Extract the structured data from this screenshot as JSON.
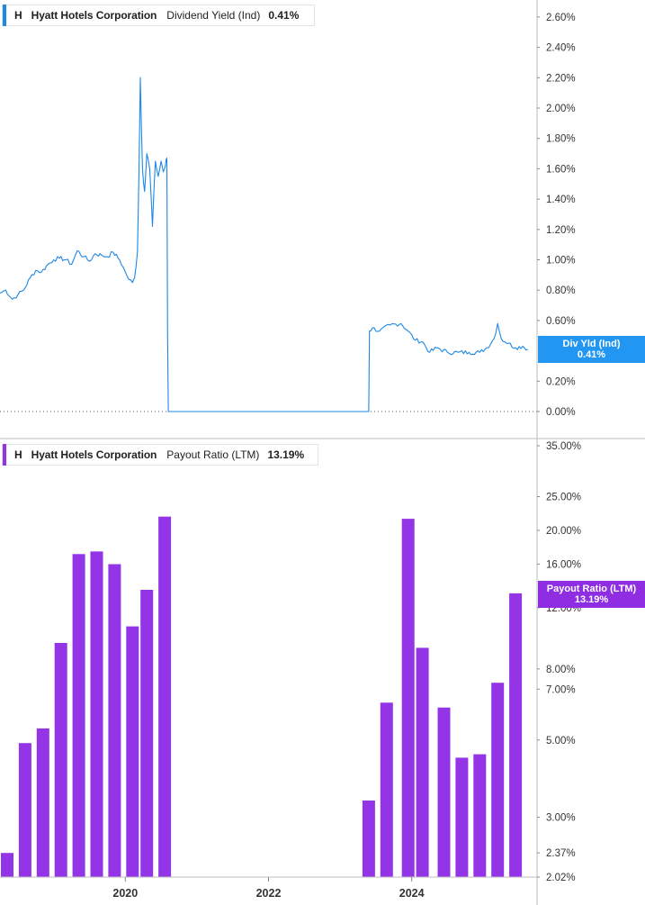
{
  "colors": {
    "dividend_line": "#1e88e5",
    "dividend_tag": "#2196f3",
    "payout_bar": "#9334e6",
    "payout_tag": "#8e2de2",
    "axis": "#bdbdbd"
  },
  "top_panel": {
    "ticker": "H",
    "company": "Hyatt Hotels Corporation",
    "metric": "Dividend Yield (Ind)",
    "value": "0.41%",
    "tag_label": "Div Yld (Ind)",
    "tag_value": "0.41%"
  },
  "bottom_panel": {
    "ticker": "H",
    "company": "Hyatt Hotels Corporation",
    "metric": "Payout Ratio (LTM)",
    "value": "13.19%",
    "tag_label": "Payout Ratio (LTM)",
    "tag_value": "13.19%"
  },
  "chart_data": [
    {
      "type": "line",
      "title": "",
      "series": [
        {
          "name": "Dividend Yield (Ind)",
          "x": [
            2018.25,
            2018.33,
            2018.42,
            2018.5,
            2018.58,
            2018.67,
            2018.75,
            2018.83,
            2018.92,
            2019.0,
            2019.08,
            2019.17,
            2019.25,
            2019.33,
            2019.42,
            2019.5,
            2019.58,
            2019.67,
            2019.75,
            2019.83,
            2019.92,
            2020.0,
            2020.05,
            2020.1,
            2020.13,
            2020.17,
            2020.19,
            2020.21,
            2020.24,
            2020.27,
            2020.3,
            2020.34,
            2020.38,
            2020.42,
            2020.46,
            2020.5,
            2020.53,
            2020.56,
            2020.58,
            2020.59,
            2020.6,
            2023.4,
            2023.41,
            2023.45,
            2023.55,
            2023.7,
            2023.85,
            2023.95,
            2024.05,
            2024.15,
            2024.25,
            2024.35,
            2024.5,
            2024.65,
            2024.8,
            2024.95,
            2025.05,
            2025.15,
            2025.2,
            2025.25,
            2025.3,
            2025.35,
            2025.45,
            2025.55,
            2025.62
          ],
          "values": [
            0.78,
            0.8,
            0.74,
            0.77,
            0.8,
            0.88,
            0.93,
            0.92,
            0.97,
            1.0,
            1.01,
            1.0,
            0.97,
            1.06,
            1.02,
            0.99,
            1.04,
            1.03,
            1.02,
            1.05,
            1.0,
            0.92,
            0.87,
            0.85,
            0.88,
            1.05,
            1.55,
            2.2,
            1.6,
            1.45,
            1.7,
            1.6,
            1.22,
            1.65,
            1.55,
            1.65,
            1.58,
            1.62,
            1.67,
            0.5,
            0.0,
            0.0,
            0.53,
            0.55,
            0.53,
            0.57,
            0.58,
            0.53,
            0.47,
            0.46,
            0.39,
            0.42,
            0.39,
            0.39,
            0.39,
            0.39,
            0.42,
            0.48,
            0.58,
            0.48,
            0.46,
            0.45,
            0.42,
            0.43,
            0.41
          ]
        }
      ],
      "y_ticks": [
        "2.60%",
        "2.40%",
        "2.20%",
        "2.00%",
        "1.80%",
        "1.60%",
        "1.40%",
        "1.20%",
        "1.00%",
        "0.80%",
        "0.60%",
        "0.20%",
        "0.00%"
      ],
      "ylim": [
        0,
        2.66
      ],
      "xlim": [
        2018.25,
        2025.75
      ]
    },
    {
      "type": "bar",
      "title": "",
      "scale": "log",
      "series": [
        {
          "name": "Payout Ratio (LTM)",
          "x": [
            2018.35,
            2018.6,
            2018.85,
            2019.1,
            2019.35,
            2019.6,
            2019.85,
            2020.1,
            2020.3,
            2020.55,
            2023.4,
            2023.65,
            2023.95,
            2024.15,
            2024.45,
            2024.7,
            2024.95,
            2025.2,
            2025.45
          ],
          "values": [
            2.37,
            4.9,
            5.4,
            9.5,
            17.1,
            17.4,
            16.0,
            10.6,
            13.5,
            21.9,
            3.35,
            6.4,
            21.6,
            9.2,
            6.2,
            4.45,
            4.55,
            7.3,
            13.19
          ]
        }
      ],
      "y_ticks": [
        "35.00%",
        "25.00%",
        "20.00%",
        "16.00%",
        "12.00%",
        "8.00%",
        "7.00%",
        "5.00%",
        "3.00%",
        "2.37%",
        "2.02%"
      ],
      "ylim": [
        2.02,
        35
      ],
      "x_ticks": [
        "2020",
        "2022",
        "2024"
      ],
      "xlim": [
        2018.25,
        2025.75
      ]
    }
  ]
}
